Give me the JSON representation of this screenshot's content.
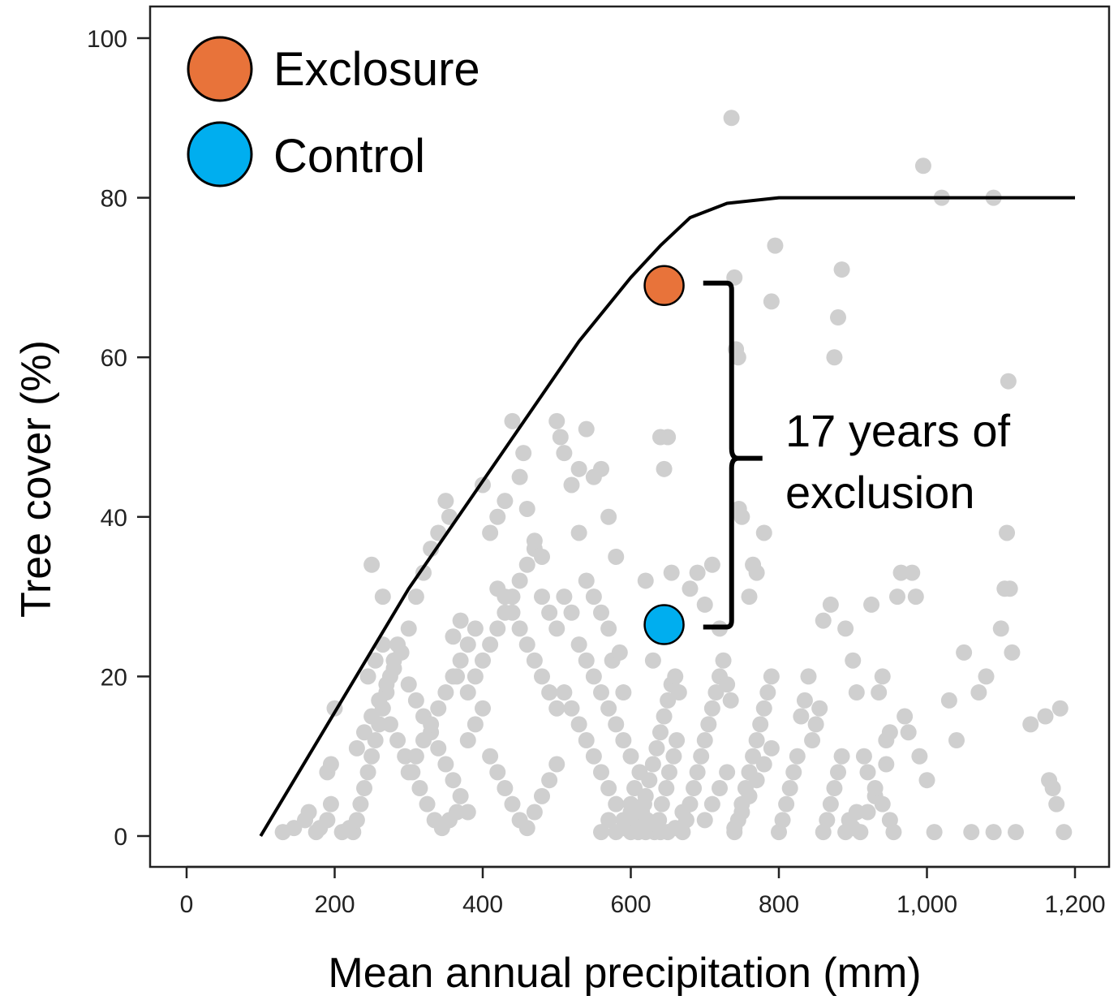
{
  "colors": {
    "exclosure": "#E8733A",
    "control": "#00AEEF",
    "background_points": "#CFCFCF",
    "curve": "#000000"
  },
  "chart_data": {
    "type": "scatter",
    "title": "",
    "xlabel": "Mean annual precipitation (mm)",
    "ylabel": "Tree cover (%)",
    "xlim": [
      -50,
      1220
    ],
    "ylim": [
      -4,
      104
    ],
    "x_ticks": [
      0,
      200,
      400,
      600,
      800,
      1000,
      1200
    ],
    "x_tick_labels": [
      "0",
      "200",
      "400",
      "600",
      "800",
      "1,000",
      "1,200"
    ],
    "y_ticks": [
      0,
      20,
      40,
      60,
      80,
      100
    ],
    "y_tick_labels": [
      "0",
      "20",
      "40",
      "60",
      "80",
      "100"
    ],
    "grid": false,
    "legend": {
      "placement": "top-left",
      "entries": [
        {
          "label": "Exclosure",
          "color": "#E8733A"
        },
        {
          "label": "Control",
          "color": "#00AEEF"
        }
      ]
    },
    "max_tree_cover_curve": [
      [
        100,
        0
      ],
      [
        300,
        31
      ],
      [
        530,
        62
      ],
      [
        600,
        70
      ],
      [
        640,
        74
      ],
      [
        680,
        77.5
      ],
      [
        730,
        79.3
      ],
      [
        800,
        80
      ],
      [
        1200,
        80
      ]
    ],
    "highlight_points": [
      {
        "name": "Exclosure",
        "x": 645,
        "y": 69
      },
      {
        "name": "Control",
        "x": 645,
        "y": 26.5
      }
    ],
    "annotation": {
      "lines": [
        "17 years of",
        "exclusion"
      ],
      "x_bracket": 700,
      "y_top": 69,
      "y_bottom": 26.5
    },
    "background_points": [
      [
        130,
        0.5
      ],
      [
        145,
        1
      ],
      [
        160,
        2
      ],
      [
        165,
        3
      ],
      [
        175,
        0.5
      ],
      [
        180,
        1
      ],
      [
        190,
        2
      ],
      [
        195,
        4
      ],
      [
        190,
        8
      ],
      [
        195,
        9
      ],
      [
        200,
        16
      ],
      [
        210,
        0.5
      ],
      [
        220,
        1
      ],
      [
        225,
        0.5
      ],
      [
        230,
        2
      ],
      [
        235,
        4
      ],
      [
        240,
        6
      ],
      [
        245,
        8
      ],
      [
        250,
        10
      ],
      [
        255,
        12
      ],
      [
        260,
        14
      ],
      [
        265,
        16
      ],
      [
        270,
        18
      ],
      [
        275,
        20
      ],
      [
        280,
        22
      ],
      [
        285,
        24
      ],
      [
        250,
        34
      ],
      [
        265,
        30
      ],
      [
        300,
        26
      ],
      [
        310,
        30
      ],
      [
        320,
        33
      ],
      [
        330,
        36
      ],
      [
        340,
        38
      ],
      [
        350,
        42
      ],
      [
        355,
        40
      ],
      [
        360,
        25
      ],
      [
        365,
        20
      ],
      [
        370,
        27
      ],
      [
        230,
        11
      ],
      [
        240,
        13
      ],
      [
        250,
        15
      ],
      [
        260,
        17
      ],
      [
        270,
        19
      ],
      [
        280,
        21
      ],
      [
        290,
        23
      ],
      [
        300,
        19
      ],
      [
        310,
        17
      ],
      [
        320,
        15
      ],
      [
        330,
        13
      ],
      [
        340,
        11
      ],
      [
        350,
        9
      ],
      [
        360,
        7
      ],
      [
        370,
        5
      ],
      [
        380,
        3
      ],
      [
        245,
        20
      ],
      [
        255,
        22
      ],
      [
        265,
        24
      ],
      [
        275,
        14
      ],
      [
        285,
        12
      ],
      [
        295,
        10
      ],
      [
        305,
        8
      ],
      [
        315,
        6
      ],
      [
        325,
        4
      ],
      [
        335,
        2
      ],
      [
        345,
        1
      ],
      [
        355,
        2
      ],
      [
        365,
        3
      ],
      [
        380,
        18
      ],
      [
        390,
        20
      ],
      [
        400,
        22
      ],
      [
        410,
        24
      ],
      [
        420,
        26
      ],
      [
        430,
        28
      ],
      [
        440,
        30
      ],
      [
        450,
        32
      ],
      [
        460,
        34
      ],
      [
        470,
        36
      ],
      [
        480,
        30
      ],
      [
        490,
        28
      ],
      [
        500,
        26
      ],
      [
        380,
        12
      ],
      [
        390,
        14
      ],
      [
        400,
        16
      ],
      [
        410,
        10
      ],
      [
        420,
        8
      ],
      [
        430,
        6
      ],
      [
        440,
        4
      ],
      [
        450,
        2
      ],
      [
        460,
        1
      ],
      [
        470,
        3
      ],
      [
        480,
        5
      ],
      [
        490,
        7
      ],
      [
        500,
        9
      ],
      [
        400,
        44
      ],
      [
        410,
        38
      ],
      [
        420,
        40
      ],
      [
        430,
        42
      ],
      [
        440,
        52
      ],
      [
        450,
        45
      ],
      [
        455,
        48
      ],
      [
        460,
        41
      ],
      [
        470,
        37
      ],
      [
        480,
        35
      ],
      [
        500,
        52
      ],
      [
        505,
        50
      ],
      [
        510,
        48
      ],
      [
        520,
        44
      ],
      [
        530,
        46
      ],
      [
        540,
        51
      ],
      [
        550,
        45
      ],
      [
        560,
        46
      ],
      [
        570,
        40
      ],
      [
        580,
        35
      ],
      [
        510,
        30
      ],
      [
        520,
        28
      ],
      [
        530,
        24
      ],
      [
        540,
        22
      ],
      [
        550,
        20
      ],
      [
        560,
        18
      ],
      [
        570,
        16
      ],
      [
        580,
        14
      ],
      [
        590,
        12
      ],
      [
        600,
        10
      ],
      [
        510,
        18
      ],
      [
        520,
        16
      ],
      [
        530,
        14
      ],
      [
        540,
        12
      ],
      [
        550,
        10
      ],
      [
        560,
        8
      ],
      [
        570,
        6
      ],
      [
        580,
        4
      ],
      [
        590,
        2
      ],
      [
        595,
        1
      ],
      [
        600,
        3
      ],
      [
        530,
        38
      ],
      [
        540,
        32
      ],
      [
        550,
        30
      ],
      [
        560,
        28
      ],
      [
        570,
        26
      ],
      [
        575,
        22
      ],
      [
        585,
        23
      ],
      [
        590,
        18
      ],
      [
        600,
        0.5
      ],
      [
        605,
        1
      ],
      [
        610,
        2
      ],
      [
        615,
        3
      ],
      [
        620,
        5
      ],
      [
        625,
        7
      ],
      [
        630,
        9
      ],
      [
        635,
        11
      ],
      [
        640,
        13
      ],
      [
        645,
        15
      ],
      [
        650,
        17
      ],
      [
        655,
        19
      ],
      [
        605,
        6
      ],
      [
        612,
        8
      ],
      [
        618,
        4
      ],
      [
        622,
        2
      ],
      [
        628,
        1
      ],
      [
        632,
        0.5
      ],
      [
        638,
        2
      ],
      [
        642,
        4
      ],
      [
        648,
        6
      ],
      [
        652,
        8
      ],
      [
        658,
        10
      ],
      [
        662,
        12
      ],
      [
        620,
        32
      ],
      [
        630,
        22
      ],
      [
        640,
        50
      ],
      [
        650,
        50
      ],
      [
        645,
        46
      ],
      [
        655,
        33
      ],
      [
        660,
        20
      ],
      [
        665,
        18
      ],
      [
        670,
        0.5
      ],
      [
        675,
        2
      ],
      [
        680,
        4
      ],
      [
        685,
        6
      ],
      [
        690,
        8
      ],
      [
        695,
        10
      ],
      [
        700,
        12
      ],
      [
        705,
        14
      ],
      [
        710,
        16
      ],
      [
        715,
        18
      ],
      [
        720,
        20
      ],
      [
        680,
        31
      ],
      [
        690,
        33
      ],
      [
        700,
        29
      ],
      [
        710,
        34
      ],
      [
        720,
        26
      ],
      [
        725,
        22
      ],
      [
        730,
        19
      ],
      [
        735,
        17
      ],
      [
        740,
        0.5
      ],
      [
        745,
        2
      ],
      [
        750,
        4
      ],
      [
        755,
        6
      ],
      [
        760,
        8
      ],
      [
        765,
        10
      ],
      [
        770,
        12
      ],
      [
        775,
        14
      ],
      [
        780,
        16
      ],
      [
        785,
        18
      ],
      [
        790,
        20
      ],
      [
        736,
        90
      ],
      [
        740,
        70
      ],
      [
        742,
        61
      ],
      [
        745,
        60
      ],
      [
        746,
        41
      ],
      [
        750,
        40
      ],
      [
        760,
        30
      ],
      [
        765,
        34
      ],
      [
        770,
        33
      ],
      [
        780,
        38
      ],
      [
        790,
        67
      ],
      [
        795,
        74
      ],
      [
        800,
        0.5
      ],
      [
        805,
        2
      ],
      [
        810,
        4
      ],
      [
        815,
        6
      ],
      [
        820,
        8
      ],
      [
        825,
        10
      ],
      [
        830,
        15
      ],
      [
        835,
        17
      ],
      [
        840,
        20
      ],
      [
        845,
        12
      ],
      [
        850,
        14
      ],
      [
        855,
        16
      ],
      [
        860,
        0.5
      ],
      [
        865,
        2
      ],
      [
        870,
        4
      ],
      [
        875,
        6
      ],
      [
        880,
        8
      ],
      [
        885,
        10
      ],
      [
        890,
        0.5
      ],
      [
        895,
        2
      ],
      [
        900,
        1
      ],
      [
        905,
        3
      ],
      [
        860,
        27
      ],
      [
        870,
        29
      ],
      [
        875,
        60
      ],
      [
        880,
        65
      ],
      [
        885,
        71
      ],
      [
        910,
        0.5
      ],
      [
        920,
        3
      ],
      [
        925,
        29
      ],
      [
        930,
        5
      ],
      [
        935,
        18
      ],
      [
        940,
        20
      ],
      [
        945,
        12
      ],
      [
        950,
        2
      ],
      [
        955,
        0.5
      ],
      [
        960,
        30
      ],
      [
        965,
        33
      ],
      [
        970,
        15
      ],
      [
        975,
        13
      ],
      [
        980,
        33
      ],
      [
        985,
        30
      ],
      [
        990,
        10
      ],
      [
        995,
        84
      ],
      [
        1000,
        7
      ],
      [
        1010,
        0.5
      ],
      [
        1020,
        80
      ],
      [
        1030,
        17
      ],
      [
        1040,
        12
      ],
      [
        1050,
        23
      ],
      [
        1060,
        0.5
      ],
      [
        1070,
        18
      ],
      [
        1080,
        20
      ],
      [
        1090,
        0.5
      ],
      [
        1100,
        26
      ],
      [
        1105,
        31
      ],
      [
        1108,
        38
      ],
      [
        1110,
        57
      ],
      [
        1112,
        31
      ],
      [
        1115,
        23
      ],
      [
        1120,
        0.5
      ],
      [
        1140,
        14
      ],
      [
        1160,
        15
      ],
      [
        1165,
        7
      ],
      [
        1170,
        6
      ],
      [
        1175,
        4
      ],
      [
        1180,
        16
      ],
      [
        1185,
        0.5
      ],
      [
        1090,
        80
      ],
      [
        890,
        26
      ],
      [
        900,
        22
      ],
      [
        905,
        18
      ],
      [
        915,
        10
      ],
      [
        920,
        8
      ],
      [
        930,
        6
      ],
      [
        940,
        4
      ],
      [
        945,
        9
      ],
      [
        950,
        13
      ],
      [
        700,
        2
      ],
      [
        710,
        4
      ],
      [
        720,
        6
      ],
      [
        730,
        8
      ],
      [
        740,
        1
      ],
      [
        750,
        3
      ],
      [
        760,
        5
      ],
      [
        770,
        7
      ],
      [
        780,
        9
      ],
      [
        790,
        11
      ],
      [
        560,
        0.5
      ],
      [
        570,
        2
      ],
      [
        580,
        0.5
      ],
      [
        590,
        1
      ],
      [
        600,
        4
      ],
      [
        610,
        0.5
      ],
      [
        620,
        0.5
      ],
      [
        630,
        1
      ],
      [
        640,
        0.5
      ],
      [
        650,
        0.5
      ],
      [
        660,
        1
      ],
      [
        670,
        3
      ],
      [
        420,
        31
      ],
      [
        430,
        30
      ],
      [
        440,
        28
      ],
      [
        450,
        26
      ],
      [
        460,
        24
      ],
      [
        470,
        22
      ],
      [
        480,
        20
      ],
      [
        490,
        18
      ],
      [
        500,
        16
      ],
      [
        300,
        8
      ],
      [
        310,
        10
      ],
      [
        320,
        12
      ],
      [
        330,
        14
      ],
      [
        340,
        16
      ],
      [
        350,
        18
      ],
      [
        360,
        20
      ],
      [
        370,
        22
      ],
      [
        380,
        24
      ],
      [
        390,
        26
      ]
    ]
  }
}
